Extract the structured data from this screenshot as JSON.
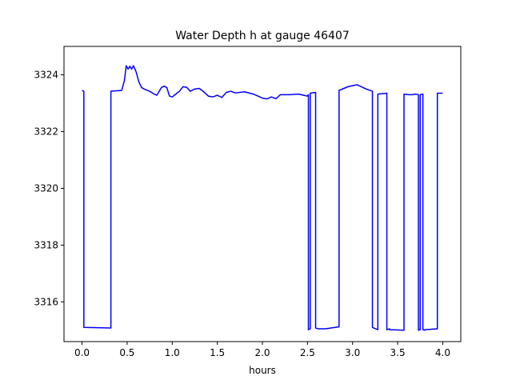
{
  "chart_data": {
    "type": "line",
    "title": "Water Depth h at gauge 46407",
    "xlabel": "hours",
    "ylabel": "",
    "xlim": [
      -0.2,
      4.2
    ],
    "ylim": [
      3314.6,
      3325.0
    ],
    "xticks": [
      0.0,
      0.5,
      1.0,
      1.5,
      2.0,
      2.5,
      3.0,
      3.5,
      4.0
    ],
    "xtick_labels": [
      "0.0",
      "0.5",
      "1.0",
      "1.5",
      "2.0",
      "2.5",
      "3.0",
      "3.5",
      "4.0"
    ],
    "yticks": [
      3316,
      3318,
      3320,
      3322,
      3324
    ],
    "ytick_labels": [
      "3316",
      "3318",
      "3320",
      "3322",
      "3324"
    ],
    "grid": false,
    "line_color": "#0000ff",
    "series": [
      {
        "name": "",
        "x": [
          0.0,
          0.02,
          0.02,
          0.32,
          0.32,
          0.44,
          0.47,
          0.49,
          0.51,
          0.53,
          0.55,
          0.57,
          0.6,
          0.63,
          0.66,
          0.7,
          0.75,
          0.8,
          0.83,
          0.88,
          0.91,
          0.94,
          0.97,
          1.0,
          1.04,
          1.08,
          1.12,
          1.16,
          1.2,
          1.25,
          1.3,
          1.35,
          1.4,
          1.45,
          1.5,
          1.55,
          1.6,
          1.65,
          1.7,
          1.8,
          1.9,
          2.0,
          2.05,
          2.1,
          2.15,
          2.2,
          2.3,
          2.4,
          2.5,
          2.51,
          2.51,
          2.53,
          2.53,
          2.59,
          2.59,
          2.62,
          2.7,
          2.85,
          2.85,
          2.95,
          3.05,
          3.15,
          3.22,
          3.22,
          3.28,
          3.28,
          3.38,
          3.38,
          3.41,
          3.41,
          3.57,
          3.57,
          3.62,
          3.62,
          3.67,
          3.69,
          3.73,
          3.73,
          3.75,
          3.75,
          3.78,
          3.78,
          3.8,
          3.8,
          3.94,
          3.94,
          3.97,
          4.0
        ],
        "values": [
          3323.45,
          3323.42,
          3315.1,
          3315.08,
          3323.42,
          3323.45,
          3323.8,
          3324.32,
          3324.2,
          3324.3,
          3324.2,
          3324.32,
          3324.1,
          3323.75,
          3323.55,
          3323.48,
          3323.42,
          3323.32,
          3323.28,
          3323.55,
          3323.6,
          3323.55,
          3323.25,
          3323.22,
          3323.32,
          3323.42,
          3323.58,
          3323.56,
          3323.42,
          3323.5,
          3323.52,
          3323.4,
          3323.25,
          3323.22,
          3323.28,
          3323.2,
          3323.38,
          3323.42,
          3323.36,
          3323.4,
          3323.32,
          3323.18,
          3323.15,
          3323.22,
          3323.16,
          3323.3,
          3323.3,
          3323.32,
          3323.25,
          3323.3,
          3315.02,
          3315.05,
          3323.35,
          3323.38,
          3315.08,
          3315.05,
          3315.05,
          3315.12,
          3323.45,
          3323.58,
          3323.65,
          3323.5,
          3323.42,
          3315.1,
          3315.02,
          3323.32,
          3323.35,
          3315.02,
          3315.05,
          3315.02,
          3315.0,
          3323.32,
          3323.3,
          3323.3,
          3323.3,
          3323.32,
          3323.3,
          3315.0,
          3315.02,
          3323.3,
          3323.32,
          3315.02,
          3315.0,
          3315.02,
          3315.05,
          3323.35,
          3323.35,
          3323.35
        ]
      }
    ]
  }
}
